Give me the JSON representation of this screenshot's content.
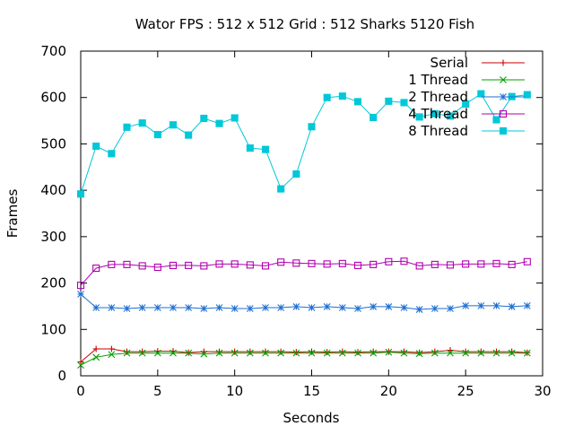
{
  "chart_data": {
    "type": "line",
    "title": "Wator FPS : 512 x 512 Grid : 512 Sharks 5120 Fish",
    "xlabel": "Seconds",
    "ylabel": "Frames",
    "xlim": [
      0,
      30
    ],
    "ylim": [
      0,
      700
    ],
    "xticks": [
      0,
      5,
      10,
      15,
      20,
      25,
      30
    ],
    "yticks": [
      0,
      100,
      200,
      300,
      400,
      500,
      600,
      700
    ],
    "grid": false,
    "legend_position": "top-right",
    "x": [
      0,
      1,
      2,
      3,
      4,
      5,
      6,
      7,
      8,
      9,
      10,
      11,
      12,
      13,
      14,
      15,
      16,
      17,
      18,
      19,
      20,
      21,
      22,
      23,
      24,
      25,
      26,
      27,
      28,
      29
    ],
    "series": [
      {
        "name": "Serial",
        "color": "#cc0000",
        "marker": "plus",
        "values": [
          30,
          58,
          58,
          52,
          52,
          53,
          53,
          50,
          52,
          52,
          52,
          52,
          52,
          52,
          51,
          52,
          51,
          52,
          51,
          52,
          52,
          52,
          50,
          52,
          55,
          52,
          52,
          52,
          52,
          50
        ]
      },
      {
        "name": "1 Thread",
        "color": "#00a000",
        "marker": "x",
        "values": [
          23,
          40,
          46,
          49,
          49,
          49,
          49,
          49,
          47,
          49,
          49,
          49,
          49,
          49,
          49,
          49,
          49,
          49,
          49,
          49,
          51,
          49,
          48,
          49,
          49,
          49,
          49,
          49,
          49,
          49
        ]
      },
      {
        "name": "2 Thread",
        "color": "#1f6fd1",
        "marker": "star",
        "values": [
          176,
          147,
          147,
          145,
          147,
          147,
          147,
          147,
          145,
          147,
          145,
          145,
          147,
          147,
          149,
          147,
          149,
          147,
          145,
          149,
          149,
          147,
          143,
          145,
          145,
          151,
          151,
          151,
          149,
          151
        ]
      },
      {
        "name": "4 Thread",
        "color": "#b000b0",
        "marker": "square-open",
        "values": [
          195,
          232,
          240,
          240,
          237,
          234,
          238,
          238,
          237,
          241,
          241,
          239,
          237,
          245,
          243,
          242,
          241,
          242,
          238,
          240,
          246,
          247,
          237,
          240,
          239,
          241,
          241,
          242,
          240,
          246
        ]
      },
      {
        "name": "8 Thread",
        "color": "#00c8d8",
        "marker": "square-filled",
        "values": [
          392,
          495,
          479,
          536,
          545,
          520,
          541,
          519,
          555,
          544,
          556,
          491,
          488,
          403,
          435,
          537,
          600,
          603,
          591,
          557,
          592,
          589,
          558,
          565,
          560,
          586,
          608,
          552,
          602,
          606
        ]
      }
    ]
  }
}
